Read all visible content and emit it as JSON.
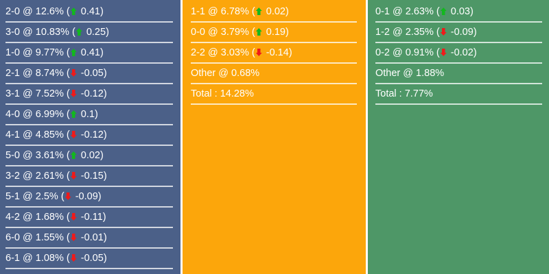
{
  "colors": {
    "home": "#4b6088",
    "draw": "#fca60b",
    "away": "#4e9767",
    "up": "#12b81e",
    "down": "#ef1a1a"
  },
  "columns": [
    {
      "name": "home",
      "rows": [
        {
          "score": "2-0",
          "pct": "12.6%",
          "dir": "up",
          "delta": "0.41"
        },
        {
          "score": "3-0",
          "pct": "10.83%",
          "dir": "up",
          "delta": "0.25"
        },
        {
          "score": "1-0",
          "pct": "9.77%",
          "dir": "up",
          "delta": "0.41"
        },
        {
          "score": "2-1",
          "pct": "8.74%",
          "dir": "down",
          "delta": "-0.05"
        },
        {
          "score": "3-1",
          "pct": "7.52%",
          "dir": "down",
          "delta": "-0.12"
        },
        {
          "score": "4-0",
          "pct": "6.99%",
          "dir": "up",
          "delta": "0.1"
        },
        {
          "score": "4-1",
          "pct": "4.85%",
          "dir": "down",
          "delta": "-0.12"
        },
        {
          "score": "5-0",
          "pct": "3.61%",
          "dir": "up",
          "delta": "0.02"
        },
        {
          "score": "3-2",
          "pct": "2.61%",
          "dir": "down",
          "delta": "-0.15"
        },
        {
          "score": "5-1",
          "pct": "2.5%",
          "dir": "down",
          "delta": "-0.09"
        },
        {
          "score": "4-2",
          "pct": "1.68%",
          "dir": "down",
          "delta": "-0.11"
        },
        {
          "score": "6-0",
          "pct": "1.55%",
          "dir": "down",
          "delta": "-0.01"
        },
        {
          "score": "6-1",
          "pct": "1.08%",
          "dir": "down",
          "delta": "-0.05"
        }
      ]
    },
    {
      "name": "draw",
      "rows": [
        {
          "score": "1-1",
          "pct": "6.78%",
          "dir": "up",
          "delta": "0.02"
        },
        {
          "score": "0-0",
          "pct": "3.79%",
          "dir": "up",
          "delta": "0.19"
        },
        {
          "score": "2-2",
          "pct": "3.03%",
          "dir": "down",
          "delta": "-0.14"
        },
        {
          "text": "Other @ 0.68%"
        },
        {
          "text": "Total : 14.28%"
        }
      ]
    },
    {
      "name": "away",
      "rows": [
        {
          "score": "0-1",
          "pct": "2.63%",
          "dir": "up",
          "delta": "0.03"
        },
        {
          "score": "1-2",
          "pct": "2.35%",
          "dir": "down",
          "delta": "-0.09"
        },
        {
          "score": "0-2",
          "pct": "0.91%",
          "dir": "down",
          "delta": "-0.02"
        },
        {
          "text": "Other @ 1.88%"
        },
        {
          "text": "Total : 7.77%"
        }
      ]
    }
  ]
}
